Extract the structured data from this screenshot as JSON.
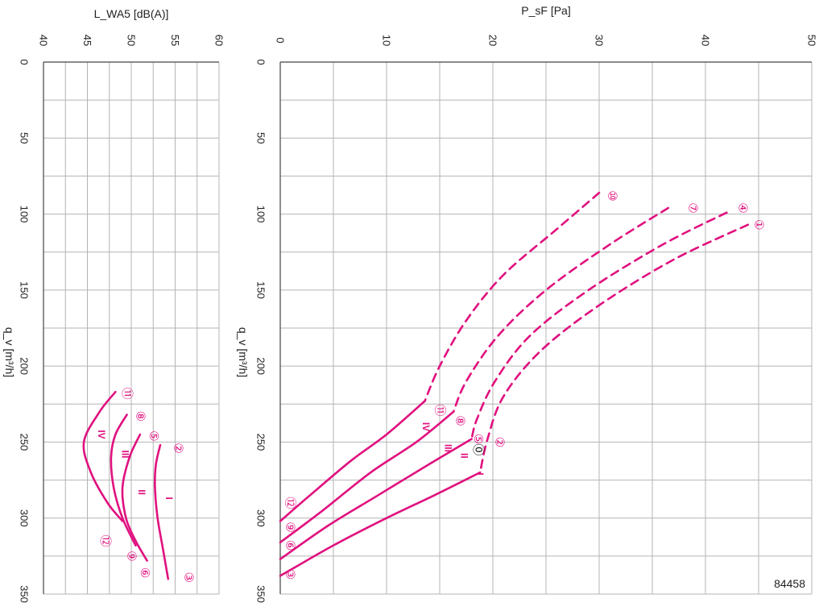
{
  "chart_data": [
    {
      "type": "line",
      "orientation": "rotated-90",
      "x_axis": {
        "label": "q_v [m³/h]",
        "range": [
          0,
          350
        ],
        "ticks": [
          0,
          50,
          100,
          150,
          200,
          250,
          300,
          350
        ]
      },
      "y_axis": {
        "label": "L_WA5 [dB(A)]",
        "range": [
          40,
          60
        ],
        "ticks": [
          40,
          45,
          50,
          55,
          60
        ]
      },
      "grid": true,
      "series": [
        {
          "id": "I",
          "points": [
            [
              252,
              53.3
            ],
            [
              265,
              52.8
            ],
            [
              280,
              52.7
            ],
            [
              300,
              53.0
            ],
            [
              320,
              53.6
            ],
            [
              340,
              54.2
            ]
          ]
        },
        {
          "id": "II",
          "points": [
            [
              245,
              51.0
            ],
            [
              260,
              49.8
            ],
            [
              280,
              49.0
            ],
            [
              300,
              49.4
            ],
            [
              315,
              50.5
            ],
            [
              328,
              51.8
            ]
          ]
        },
        {
          "id": "III",
          "points": [
            [
              232,
              49.5
            ],
            [
              245,
              48.2
            ],
            [
              260,
              47.7
            ],
            [
              280,
              48.0
            ],
            [
              300,
              49.0
            ],
            [
              318,
              50.5
            ]
          ]
        },
        {
          "id": "IV",
          "points": [
            [
              217,
              48.2
            ],
            [
              230,
              46.4
            ],
            [
              250,
              44.6
            ],
            [
              270,
              45.4
            ],
            [
              290,
              47.3
            ],
            [
              302,
              49.0
            ]
          ]
        }
      ],
      "markers": [
        {
          "label": "②",
          "x": 254,
          "y": 55.3
        },
        {
          "label": "③",
          "x": 339,
          "y": 56.5
        },
        {
          "label": "⑤",
          "x": 246,
          "y": 52.5
        },
        {
          "label": "⑥",
          "x": 336,
          "y": 51.5
        },
        {
          "label": "⑧",
          "x": 233,
          "y": 51.0
        },
        {
          "label": "⑨",
          "x": 325,
          "y": 50.0
        },
        {
          "label": "⑪",
          "x": 218,
          "y": 49.5
        },
        {
          "label": "⑫",
          "x": 315,
          "y": 47.0
        }
      ],
      "roman_labels": [
        {
          "text": "I",
          "x": 287,
          "y": 54.3
        },
        {
          "text": "II",
          "x": 283,
          "y": 51.2
        },
        {
          "text": "III",
          "x": 258,
          "y": 49.3
        },
        {
          "text": "IV",
          "x": 245,
          "y": 46.6
        }
      ]
    },
    {
      "type": "line",
      "orientation": "rotated-90",
      "x_axis": {
        "label": "q_v [m³/h]",
        "range": [
          0,
          350
        ],
        "ticks": [
          0,
          50,
          100,
          150,
          200,
          250,
          300,
          350
        ]
      },
      "y_axis": {
        "label": "P_sF [Pa]",
        "range": [
          0,
          50
        ],
        "ticks": [
          0,
          10,
          20,
          30,
          40,
          50
        ]
      },
      "grid": true,
      "series": [
        {
          "id": "I-solid",
          "style": "solid",
          "points": [
            [
              270,
              18.8
            ],
            [
              285,
              14.5
            ],
            [
              300,
              10.0
            ],
            [
              318,
              5.0
            ],
            [
              338,
              0.0
            ]
          ]
        },
        {
          "id": "II-solid",
          "style": "solid",
          "points": [
            [
              248,
              18.0
            ],
            [
              265,
              13.9
            ],
            [
              285,
              9.2
            ],
            [
              305,
              4.5
            ],
            [
              327,
              0.0
            ]
          ]
        },
        {
          "id": "III-solid",
          "style": "solid",
          "points": [
            [
              230,
              16.3
            ],
            [
              250,
              12.8
            ],
            [
              270,
              8.5
            ],
            [
              295,
              4.0
            ],
            [
              316,
              0.0
            ]
          ]
        },
        {
          "id": "IV-solid",
          "style": "solid",
          "points": [
            [
              223,
              13.6
            ],
            [
              245,
              10.0
            ],
            [
              262,
              6.7
            ],
            [
              285,
              2.8
            ],
            [
              302,
              0.0
            ]
          ]
        },
        {
          "id": "I-dashed",
          "style": "dashed",
          "points": [
            [
              107,
              44.0
            ],
            [
              130,
              37.0
            ],
            [
              160,
              30.0
            ],
            [
              190,
              24.5
            ],
            [
              220,
              21.0
            ],
            [
              248,
              19.5
            ],
            [
              270,
              18.8
            ]
          ]
        },
        {
          "id": "II-dashed",
          "style": "dashed",
          "points": [
            [
              99,
              42.0
            ],
            [
              120,
              36.0
            ],
            [
              150,
              29.0
            ],
            [
              180,
              23.5
            ],
            [
              210,
              20.2
            ],
            [
              235,
              18.5
            ],
            [
              248,
              18.0
            ]
          ]
        },
        {
          "id": "III-dashed",
          "style": "dashed",
          "points": [
            [
              96,
              36.5
            ],
            [
              120,
              31.0
            ],
            [
              150,
              25.0
            ],
            [
              180,
              20.5
            ],
            [
              210,
              17.5
            ],
            [
              230,
              16.3
            ]
          ]
        },
        {
          "id": "IV-dashed",
          "style": "dashed",
          "points": [
            [
              86,
              30.0
            ],
            [
              110,
              26.0
            ],
            [
              140,
              21.0
            ],
            [
              170,
              17.5
            ],
            [
              200,
              15.0
            ],
            [
              223,
              13.6
            ]
          ]
        }
      ],
      "markers": [
        {
          "label": "①",
          "x": 107,
          "y": 45.0
        },
        {
          "label": "④",
          "x": 96,
          "y": 43.5
        },
        {
          "label": "⑦",
          "x": 96,
          "y": 38.8
        },
        {
          "label": "⑩",
          "x": 88,
          "y": 31.2
        },
        {
          "label": "⑪",
          "x": 229,
          "y": 15.0
        },
        {
          "label": "⑧",
          "x": 236,
          "y": 16.9
        },
        {
          "label": "⑤",
          "x": 248,
          "y": 18.6
        },
        {
          "label": "②",
          "x": 250,
          "y": 20.6
        },
        {
          "label": "⑫",
          "x": 290,
          "y": 0.9
        },
        {
          "label": "⑨",
          "x": 306,
          "y": 0.9
        },
        {
          "label": "⑥",
          "x": 318,
          "y": 0.9
        },
        {
          "label": "③",
          "x": 337,
          "y": 0.9
        }
      ],
      "special_marker": {
        "label": "⓪",
        "x": 255,
        "y": 18.6
      },
      "roman_labels": [
        {
          "text": "I",
          "x": 271,
          "y": 18.8
        },
        {
          "text": "II",
          "x": 259,
          "y": 17.3
        },
        {
          "text": "III",
          "x": 254,
          "y": 15.8
        },
        {
          "text": "IV",
          "x": 240,
          "y": 13.7
        }
      ],
      "identifier": "84458"
    }
  ]
}
